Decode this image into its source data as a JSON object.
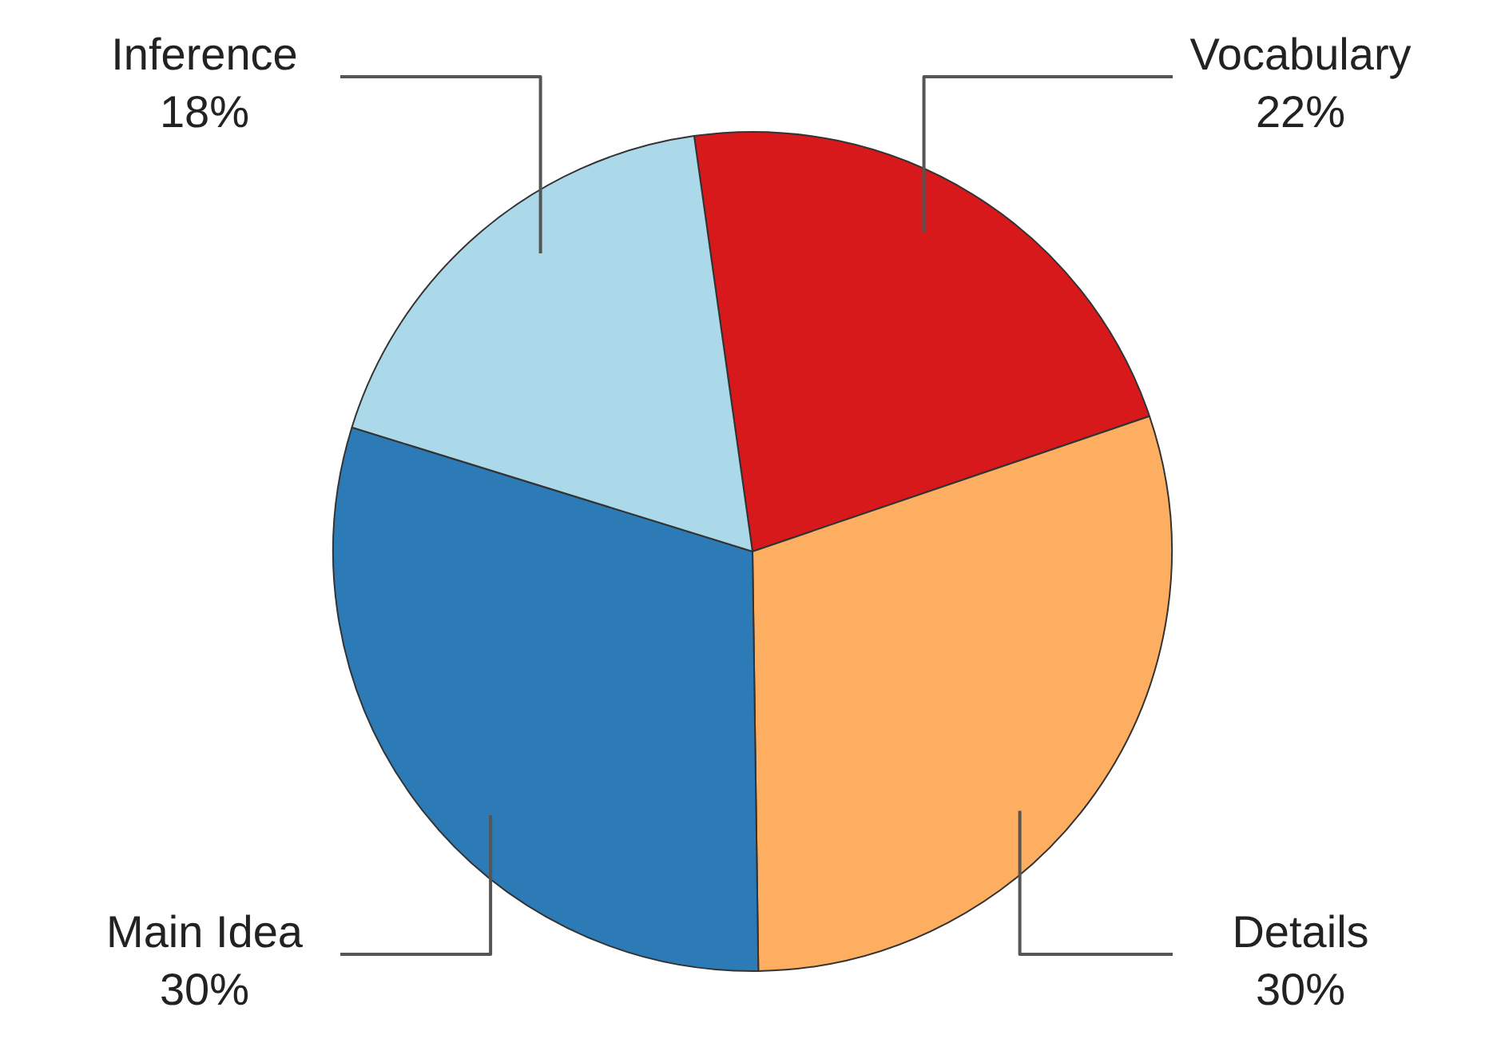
{
  "chart_data": {
    "type": "pie",
    "categories": [
      "Vocabulary",
      "Details",
      "Main Idea",
      "Inference"
    ],
    "values": [
      22,
      30,
      30,
      18
    ],
    "value_labels": [
      "22%",
      "30%",
      "30%",
      "18%"
    ],
    "colors": [
      "#d7191c",
      "#fdae61",
      "#2c7bb6",
      "#abd9e9"
    ],
    "legend": false
  }
}
